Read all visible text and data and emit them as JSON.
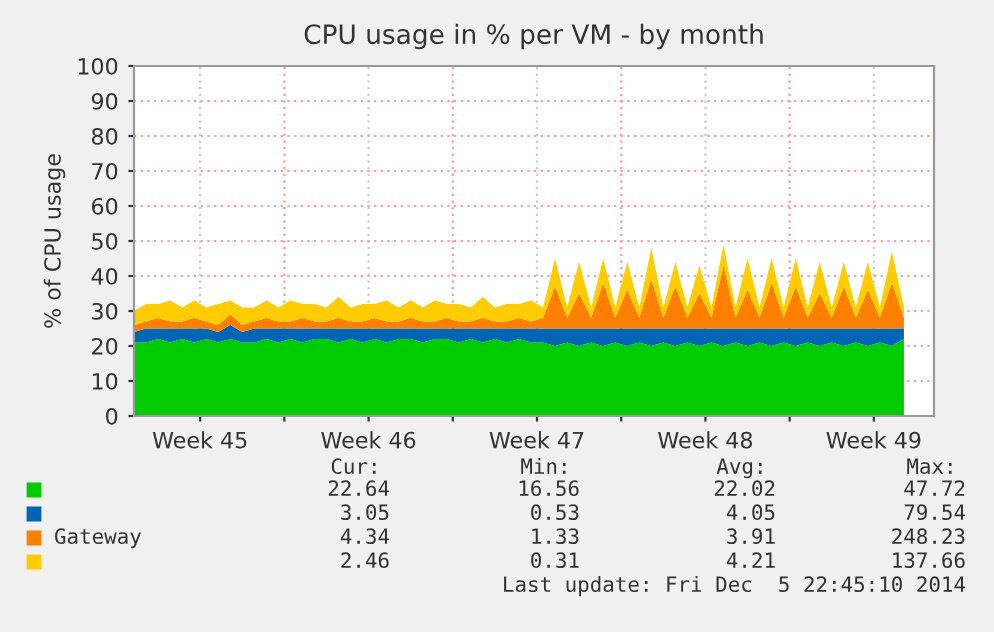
{
  "chart_data": {
    "type": "area",
    "stacked": true,
    "title": "CPU usage in % per VM - by month",
    "ylabel": "% of CPU usage",
    "x": [
      "2014-11-03T18:00",
      "2014-11-04T06:00",
      "2014-11-04T18:00",
      "2014-11-05T06:00",
      "2014-11-05T18:00",
      "2014-11-06T06:00",
      "2014-11-06T18:00",
      "2014-11-07T06:00",
      "2014-11-07T18:00",
      "2014-11-08T06:00",
      "2014-11-08T18:00",
      "2014-11-09T06:00",
      "2014-11-09T18:00",
      "2014-11-10T06:00",
      "2014-11-10T18:00",
      "2014-11-11T06:00",
      "2014-11-11T18:00",
      "2014-11-12T06:00",
      "2014-11-12T18:00",
      "2014-11-13T06:00",
      "2014-11-13T18:00",
      "2014-11-14T06:00",
      "2014-11-14T18:00",
      "2014-11-15T06:00",
      "2014-11-15T18:00",
      "2014-11-16T06:00",
      "2014-11-16T18:00",
      "2014-11-17T06:00",
      "2014-11-17T18:00",
      "2014-11-18T06:00",
      "2014-11-18T18:00",
      "2014-11-19T06:00",
      "2014-11-19T18:00",
      "2014-11-20T06:00",
      "2014-11-20T18:00",
      "2014-11-21T06:00",
      "2014-11-21T18:00",
      "2014-11-22T06:00",
      "2014-11-22T18:00",
      "2014-11-23T06:00",
      "2014-11-23T18:00",
      "2014-11-24T06:00",
      "2014-11-24T18:00",
      "2014-11-25T06:00",
      "2014-11-25T18:00",
      "2014-11-26T06:00",
      "2014-11-26T18:00",
      "2014-11-27T06:00",
      "2014-11-27T18:00",
      "2014-11-28T06:00",
      "2014-11-28T18:00",
      "2014-11-29T06:00",
      "2014-11-29T18:00",
      "2014-11-30T06:00",
      "2014-11-30T18:00",
      "2014-12-01T06:00",
      "2014-12-01T18:00",
      "2014-12-02T06:00",
      "2014-12-02T18:00",
      "2014-12-03T06:00",
      "2014-12-03T18:00",
      "2014-12-04T06:00",
      "2014-12-04T18:00",
      "2014-12-05T06:00",
      "2014-12-05T18:00"
    ],
    "series": [
      {
        "color": "#00cc00",
        "values": [
          21,
          21,
          22,
          21,
          22,
          21,
          22,
          21,
          22,
          21,
          21,
          22,
          21,
          22,
          21,
          22,
          22,
          21,
          22,
          21,
          22,
          21,
          22,
          22,
          21,
          22,
          22,
          21,
          22,
          21,
          22,
          21,
          22,
          21,
          21,
          20,
          21,
          20,
          21,
          20,
          21,
          20,
          21,
          20,
          21,
          20,
          21,
          20,
          21,
          20,
          21,
          20,
          21,
          20,
          21,
          20,
          21,
          20,
          21,
          20,
          21,
          20,
          21,
          20,
          22
        ]
      },
      {
        "color": "#0066b3",
        "values": [
          3,
          4,
          3,
          4,
          3,
          4,
          3,
          3,
          4,
          3,
          4,
          3,
          4,
          3,
          4,
          3,
          3,
          4,
          3,
          4,
          3,
          4,
          3,
          3,
          4,
          3,
          3,
          4,
          3,
          4,
          3,
          4,
          3,
          4,
          4,
          5,
          4,
          5,
          4,
          5,
          4,
          5,
          4,
          5,
          4,
          5,
          4,
          5,
          4,
          5,
          4,
          5,
          4,
          5,
          4,
          5,
          4,
          5,
          4,
          5,
          4,
          5,
          4,
          5,
          3
        ]
      },
      {
        "name": "Gateway",
        "color": "#ff8000",
        "values": [
          2,
          2,
          3,
          2,
          2,
          3,
          2,
          2,
          3,
          2,
          2,
          3,
          2,
          2,
          3,
          2,
          2,
          3,
          2,
          2,
          3,
          2,
          2,
          3,
          2,
          2,
          3,
          2,
          2,
          3,
          2,
          2,
          3,
          2,
          3,
          12,
          3,
          10,
          3,
          13,
          3,
          11,
          3,
          14,
          3,
          12,
          3,
          10,
          3,
          18,
          3,
          11,
          3,
          13,
          3,
          12,
          3,
          10,
          3,
          12,
          3,
          11,
          3,
          13,
          3
        ]
      },
      {
        "color": "#ffcc00",
        "values": [
          4,
          5,
          4,
          6,
          4,
          5,
          4,
          6,
          4,
          5,
          4,
          5,
          4,
          6,
          4,
          5,
          4,
          6,
          4,
          5,
          4,
          6,
          4,
          5,
          4,
          6,
          4,
          5,
          4,
          6,
          4,
          5,
          4,
          6,
          3,
          8,
          3,
          9,
          3,
          7,
          3,
          8,
          3,
          9,
          3,
          7,
          3,
          8,
          3,
          6,
          3,
          9,
          3,
          7,
          3,
          8,
          3,
          9,
          3,
          7,
          3,
          8,
          3,
          9,
          3
        ]
      }
    ],
    "ylim": [
      0,
      100
    ],
    "yticks": [
      0,
      10,
      20,
      30,
      40,
      50,
      60,
      70,
      80,
      90,
      100
    ],
    "xlim": [
      "2014-11-03T18:00",
      "2014-12-07T00:00"
    ],
    "xticks": [
      {
        "value": "2014-11-06T12:00",
        "label": "Week 45"
      },
      {
        "value": "2014-11-10T00:00",
        "label": null
      },
      {
        "value": "2014-11-13T12:00",
        "label": "Week 46"
      },
      {
        "value": "2014-11-17T00:00",
        "label": null
      },
      {
        "value": "2014-11-20T12:00",
        "label": "Week 47"
      },
      {
        "value": "2014-11-24T00:00",
        "label": null
      },
      {
        "value": "2014-11-27T12:00",
        "label": "Week 48"
      },
      {
        "value": "2014-12-01T00:00",
        "label": null
      },
      {
        "value": "2014-12-04T12:00",
        "label": "Week 49"
      }
    ],
    "grid": true,
    "legend": "bottom",
    "annotations": [
      "Cur:",
      "Min:",
      "Avg:",
      "Max:",
      "22.64",
      "16.56",
      "22.02",
      "47.72",
      "3.05",
      "0.53",
      "4.05",
      "79.54",
      "4.34",
      "1.33",
      "3.91",
      "248.23",
      "2.46",
      "0.31",
      "4.21",
      "137.66",
      "Last update: Fri Dec  5 22:45:10 2014"
    ]
  }
}
